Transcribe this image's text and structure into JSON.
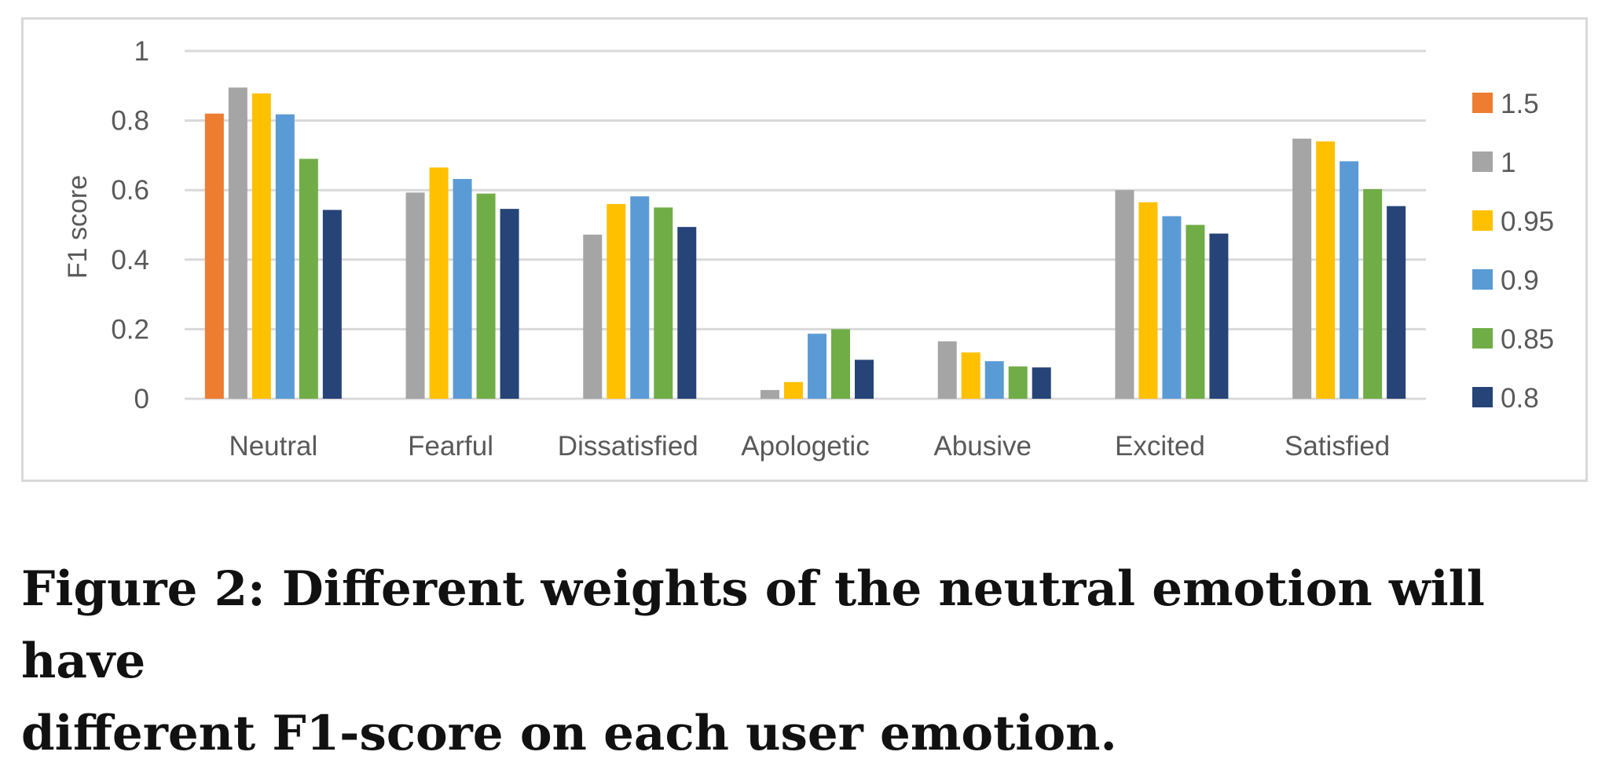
{
  "chart_data": {
    "type": "bar",
    "ylabel": "F1 score",
    "ylim": [
      0,
      1
    ],
    "yticks": [
      0,
      0.2,
      0.4,
      0.6,
      0.8,
      1
    ],
    "ytick_labels": [
      "0",
      "0.2",
      "0.4",
      "0.6",
      "0.8",
      "1"
    ],
    "categories": [
      "Neutral",
      "Fearful",
      "Dissatisfied",
      "Apologetic",
      "Abusive",
      "Excited",
      "Satisfied"
    ],
    "series": [
      {
        "name": "1.5",
        "color": "#ed7d31",
        "values": [
          0.82,
          null,
          null,
          null,
          null,
          null,
          null
        ]
      },
      {
        "name": "1",
        "color": "#a5a5a5",
        "values": [
          0.895,
          0.593,
          0.472,
          0.025,
          0.165,
          0.6,
          0.748
        ]
      },
      {
        "name": "0.95",
        "color": "#ffc000",
        "values": [
          0.878,
          0.665,
          0.56,
          0.048,
          0.133,
          0.565,
          0.74
        ]
      },
      {
        "name": "0.9",
        "color": "#5b9bd5",
        "values": [
          0.818,
          0.632,
          0.582,
          0.187,
          0.108,
          0.525,
          0.683
        ]
      },
      {
        "name": "0.85",
        "color": "#70ad47",
        "values": [
          0.69,
          0.59,
          0.55,
          0.2,
          0.093,
          0.5,
          0.603
        ]
      },
      {
        "name": "0.8",
        "color": "#264478",
        "values": [
          0.543,
          0.546,
          0.494,
          0.112,
          0.09,
          0.475,
          0.554
        ]
      }
    ],
    "grid": true,
    "legend_position": "right"
  },
  "caption": {
    "line1": "Figure 2: Different weights of the neutral emotion will have",
    "line2": "different F1-score on each user emotion."
  }
}
